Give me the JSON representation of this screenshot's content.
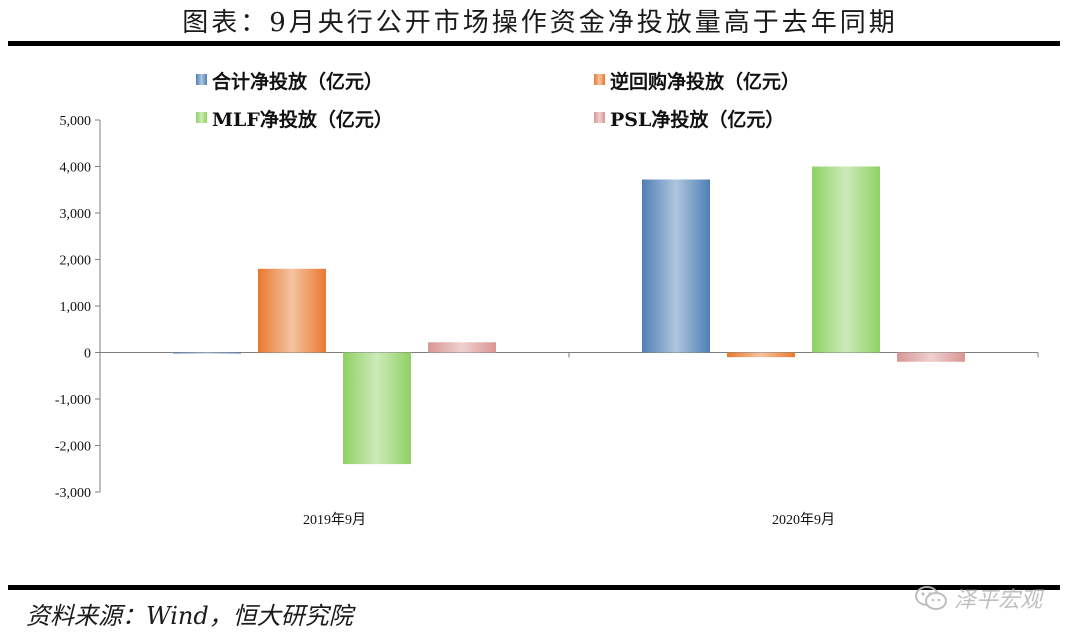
{
  "title": "图表：9月央行公开市场操作资金净投放量高于去年同期",
  "source": "资料来源：Wind，恒大研究院",
  "watermark": {
    "text": "泽平宏观",
    "icon": "wechat-icon"
  },
  "chart_data": {
    "type": "bar",
    "categories": [
      "2019年9月",
      "2020年9月"
    ],
    "series": [
      {
        "name": "合计净投放（亿元）",
        "color": "#4f7fb5",
        "values": [
          0,
          3720
        ]
      },
      {
        "name": "逆回购净投放（亿元）",
        "color": "#e8792f",
        "values": [
          1800,
          -100
        ]
      },
      {
        "name": "MLF净投放（亿元）",
        "color": "#8fd163",
        "values": [
          -2400,
          4000
        ]
      },
      {
        "name": "PSL净投放（亿元）",
        "color": "#d99694",
        "values": [
          220,
          -200
        ]
      }
    ],
    "ylim": [
      -3000,
      5000
    ],
    "yticks": [
      -3000,
      -2000,
      -1000,
      0,
      1000,
      2000,
      3000,
      4000,
      5000
    ],
    "ytick_labels": [
      "-3,000",
      "-2,000",
      "-1,000",
      "0",
      "1,000",
      "2,000",
      "3,000",
      "4,000",
      "5,000"
    ],
    "grid": false,
    "legend_position": "top"
  }
}
